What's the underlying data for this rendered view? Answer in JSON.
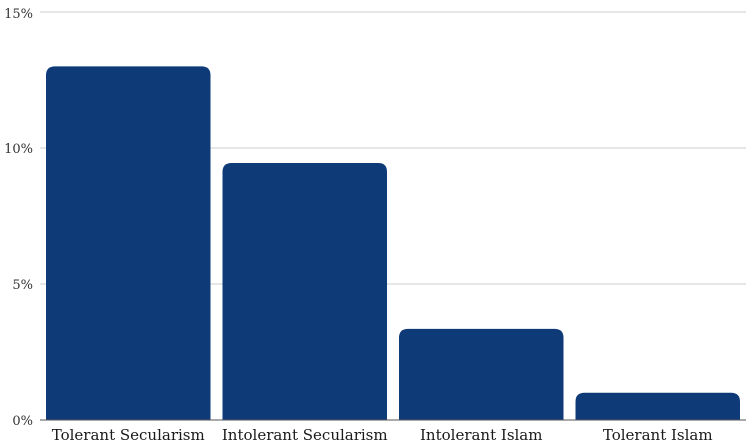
{
  "chart_data": {
    "type": "bar",
    "title": "",
    "xlabel": "",
    "ylabel": "",
    "categories": [
      "Tolerant Secularism",
      "Intolerant Secularism",
      "Intolerant Islam",
      "Tolerant Islam"
    ],
    "values": [
      13.0,
      9.45,
      3.35,
      1.0
    ],
    "unit": "%",
    "ylim": [
      0,
      15
    ],
    "yticks": [
      0,
      5,
      10,
      15
    ],
    "ytick_labels": [
      "0%",
      "5%",
      "10%",
      "15%"
    ],
    "grid": true,
    "legend": "none",
    "colors": {
      "bar": "#0f3a78",
      "grid": "#cccccc",
      "axis": "#555555"
    }
  }
}
